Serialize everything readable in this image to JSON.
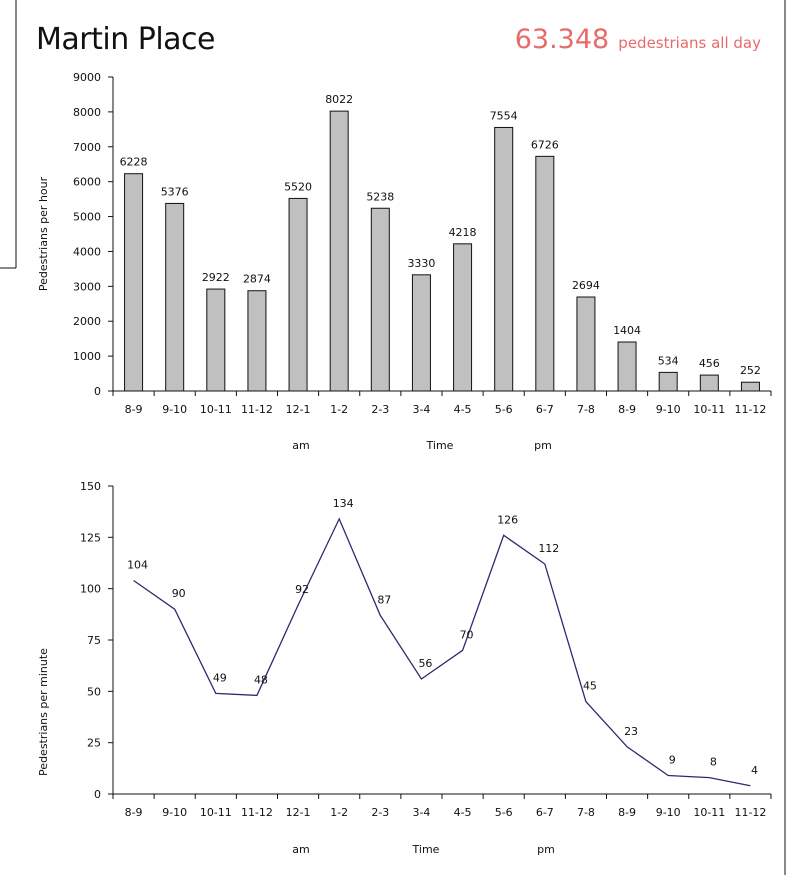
{
  "header": {
    "title": "Martin Place",
    "total_value": "63.348",
    "total_label": "pedestrians all day",
    "total_color": "#e86a6a"
  },
  "chart_data": [
    {
      "type": "bar",
      "categories": [
        "8-9",
        "9-10",
        "10-11",
        "11-12",
        "12-1",
        "1-2",
        "2-3",
        "3-4",
        "4-5",
        "5-6",
        "6-7",
        "7-8",
        "8-9",
        "9-10",
        "10-11",
        "11-12"
      ],
      "values": [
        6228,
        5376,
        2922,
        2874,
        5520,
        8022,
        5238,
        3330,
        4218,
        7554,
        6726,
        2694,
        1404,
        534,
        456,
        252
      ],
      "ylabel": "Pedestrians per hour",
      "xlabel": "Time",
      "group_labels": [
        "am",
        "pm"
      ],
      "ylim": [
        0,
        9000
      ],
      "yticks": [
        0,
        1000,
        2000,
        3000,
        4000,
        5000,
        6000,
        7000,
        8000,
        9000
      ],
      "bar_color": "#c0c0c0",
      "grid": false
    },
    {
      "type": "line",
      "categories": [
        "8-9",
        "9-10",
        "10-11",
        "11-12",
        "12-1",
        "1-2",
        "2-3",
        "3-4",
        "4-5",
        "5-6",
        "6-7",
        "7-8",
        "8-9",
        "9-10",
        "10-11",
        "11-12"
      ],
      "values": [
        104,
        90,
        49,
        48,
        92,
        134,
        87,
        56,
        70,
        126,
        112,
        45,
        23,
        9,
        8,
        4
      ],
      "ylabel": "Pedestrians per minute",
      "xlabel": "Time",
      "group_labels": [
        "am",
        "pm"
      ],
      "ylim": [
        0,
        150
      ],
      "yticks": [
        0,
        25,
        50,
        75,
        100,
        125,
        150
      ],
      "line_color": "#2b2b6e",
      "grid": false
    }
  ]
}
